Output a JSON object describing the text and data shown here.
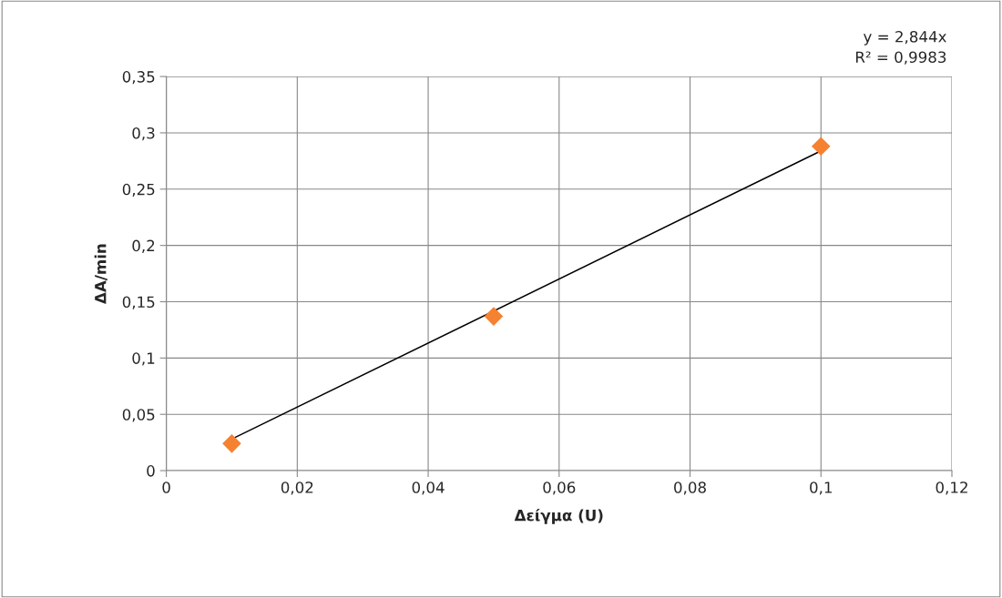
{
  "chart_data": {
    "type": "scatter",
    "xlabel": "Δείγμα (U)",
    "ylabel": "ΔA/min",
    "series": [
      {
        "color": "#f58231",
        "marker": "diamond",
        "x": [
          0.01,
          0.05,
          0.1
        ],
        "values": [
          0.024,
          0.137,
          0.288
        ]
      },
      {
        "type": "line",
        "color": "#000000",
        "marker": "none",
        "x": [
          0.01,
          0.1
        ],
        "values": [
          0.028,
          0.284
        ]
      }
    ],
    "annotations": [
      "y = 2,844x\nR² = 0,9983"
    ],
    "xlim": [
      0,
      0.12
    ],
    "ylim": [
      0,
      0.35
    ],
    "xticks": [
      0,
      {
        "value": 0.02,
        "label": "0,02"
      },
      {
        "value": 0.04,
        "label": "0,04"
      },
      {
        "value": 0.06,
        "label": "0,06"
      },
      {
        "value": 0.08,
        "label": "0,08"
      },
      {
        "value": 0.1,
        "label": "0,1"
      },
      {
        "value": 0.12,
        "label": "0,12"
      }
    ],
    "yticks": [
      0,
      {
        "value": 0.05,
        "label": "0,05"
      },
      {
        "value": 0.1,
        "label": "0,1"
      },
      {
        "value": 0.15,
        "label": "0,15"
      },
      {
        "value": 0.2,
        "label": "0,2"
      },
      {
        "value": 0.25,
        "label": "0,25"
      },
      {
        "value": 0.3,
        "label": "0,3"
      },
      {
        "value": 0.35,
        "label": "0,35"
      }
    ],
    "grid": true
  }
}
